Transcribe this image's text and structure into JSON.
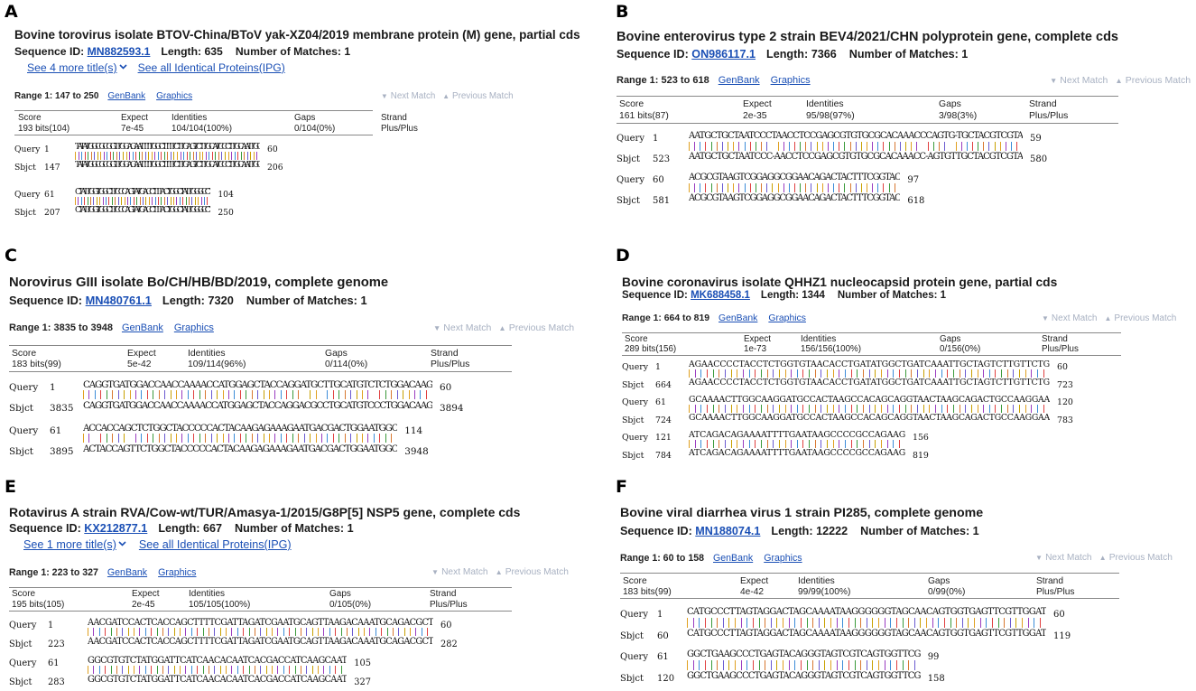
{
  "panels": [
    {
      "letter": "A",
      "title": "Bovine torovirus isolate BTOV-China/BToV yak-XZ04/2019 membrane protein (M) gene, partial cds",
      "seq_id_label": "Sequence ID:",
      "seq_id": "MN882593.1",
      "length_label": "Length:",
      "length": "635",
      "matches_label": "Number of Matches:",
      "matches": "1",
      "more_titles": "See 4 more title(s)",
      "identical_proteins": "See all Identical Proteins(IPG)",
      "range": "Range 1: 147 to 250",
      "genbank": "GenBank",
      "graphics": "Graphics",
      "next_match": "Next Match",
      "previous_match": "Previous Match",
      "score_headers": [
        "Score",
        "Expect",
        "Identities",
        "Gaps",
        "Strand"
      ],
      "score_values": [
        "193 bits(104)",
        "7e-45",
        "104/104(100%)",
        "0/104(0%)",
        "Plus/Plus"
      ],
      "alignment": [
        {
          "label": "Query",
          "start": "1",
          "seq": "TATATGGCGCGGTTGGAGAATTTTGGCTTTTCTTGAGTCTTGCATCCCTTGCAATTGC",
          "end": "60"
        },
        {
          "label": "Sbjct",
          "start": "147",
          "seq": "TATATGGCGCGGTTGGAGAATTTTGGCTTTTCTTGAGTCTTGCATCCCTTGCAATTGC",
          "end": "206"
        },
        {
          "label": "Query",
          "start": "61",
          "seq": "CTATTGGTGGCTTCCCAGTATGACCTTTACTGGCTATTGGGCCT",
          "end": "104"
        },
        {
          "label": "Sbjct",
          "start": "207",
          "seq": "CTATTGGTGGCTTCCCAGTATGACCTTTACTGGCTATTGGGCCT",
          "end": "250"
        }
      ]
    },
    {
      "letter": "B",
      "title": "Bovine enterovirus type 2 strain BEV4/2021/CHN polyprotein gene, complete cds",
      "seq_id_label": "Sequence ID:",
      "seq_id": "ON986117.1",
      "length_label": "Length:",
      "length": "7366",
      "matches_label": "Number of Matches:",
      "matches": "1",
      "range": "Range 1: 523 to 618",
      "genbank": "GenBank",
      "graphics": "Graphics",
      "next_match": "Next Match",
      "previous_match": "Previous Match",
      "score_headers": [
        "Score",
        "Expect",
        "Identities",
        "Gaps",
        "Strand"
      ],
      "score_values": [
        "161 bits(87)",
        "2e-35",
        "95/98(97%)",
        "3/98(3%)",
        "Plus/Plus"
      ],
      "alignment": [
        {
          "label": "Query",
          "start": "1",
          "seq": "AATGCTGCTAATCCCTAACCTCCGAGCGTGTGCGCACAAACCCAGTG-TGCTACGTCGTA",
          "end": "59"
        },
        {
          "label": "Sbjct",
          "start": "523",
          "seq": "AATGCTGCTAATCCC-AACCTCCGAGCGTGTGCGCACAAACC-AGTGTTGCTACGTCGTA",
          "end": "580"
        },
        {
          "label": "Query",
          "start": "60",
          "seq": "ACGCGTAAGTCGGAGGCGGAACAGACTACTTTCGGTAC",
          "end": "97"
        },
        {
          "label": "Sbjct",
          "start": "581",
          "seq": "ACGCGTAAGTCGGAGGCGGAACAGACTACTTTCGGTAC",
          "end": "618"
        }
      ]
    },
    {
      "letter": "C",
      "title": "Norovirus GIII isolate Bo/CH/HB/BD/2019, complete genome",
      "seq_id_label": "Sequence ID:",
      "seq_id": "MN480761.1",
      "length_label": "Length:",
      "length": "7320",
      "matches_label": "Number of Matches:",
      "matches": "1",
      "range": "Range 1: 3835 to 3948",
      "genbank": "GenBank",
      "graphics": "Graphics",
      "next_match": "Next Match",
      "previous_match": "Previous Match",
      "score_headers": [
        "Score",
        "Expect",
        "Identities",
        "Gaps",
        "Strand"
      ],
      "score_values": [
        "183 bits(99)",
        "5e-42",
        "109/114(96%)",
        "0/114(0%)",
        "Plus/Plus"
      ],
      "alignment": [
        {
          "label": "Query",
          "start": "1",
          "seq": "CAGGTGATGGACCAACCAAAACCATGGAGCTACCAGGATGCTTGCATGTCTCTGGACAAG",
          "end": "60"
        },
        {
          "label": "Sbjct",
          "start": "3835",
          "seq": "CAGGTGATGGACCAACCAAAACCATGGAGCTACCAGGACGCCTGCATGTCCCTGGACAAG",
          "end": "3894"
        },
        {
          "label": "Query",
          "start": "61",
          "seq": "ACCACCAGCTCTGGCTACCCCCACTACAAGAGAAAGAATGACGACTGGAATGGC",
          "end": "114"
        },
        {
          "label": "Sbjct",
          "start": "3895",
          "seq": "ACTACCAGTTCTGGCTACCCCCACTACAAGAGAAAGAATGACGACTGGAATGGC",
          "end": "3948"
        }
      ]
    },
    {
      "letter": "D",
      "title": "Bovine coronavirus isolate QHHZ1 nucleocapsid protein gene, partial cds",
      "seq_id_label": "Sequence ID:",
      "seq_id": "MK688458.1",
      "length_label": "Length:",
      "length": "1344",
      "matches_label": "Number of Matches:",
      "matches": "1",
      "range": "Range 1: 664 to 819",
      "genbank": "GenBank",
      "graphics": "Graphics",
      "next_match": "Next Match",
      "previous_match": "Previous Match",
      "score_headers": [
        "Score",
        "Expect",
        "Identities",
        "Gaps",
        "Strand"
      ],
      "score_values": [
        "289 bits(156)",
        "1e-73",
        "156/156(100%)",
        "0/156(0%)",
        "Plus/Plus"
      ],
      "alignment": [
        {
          "label": "Query",
          "start": "1",
          "seq": "AGAACCCCTACCTCTGGTGTAACACCTGATATGGCTGATCAAATTGCTAGTCTTGTTCTG",
          "end": "60"
        },
        {
          "label": "Sbjct",
          "start": "664",
          "seq": "AGAACCCCTACCTCTGGTGTAACACCTGATATGGCTGATCAAATTGCTAGTCTTGTTCTG",
          "end": "723"
        },
        {
          "label": "Query",
          "start": "61",
          "seq": "GCAAAACTTGGCAAGGATGCCACTAAGCCACAGCAGGTAACTAAGCAGACTGCCAAGGAA",
          "end": "120"
        },
        {
          "label": "Sbjct",
          "start": "724",
          "seq": "GCAAAACTTGGCAAGGATGCCACTAAGCCACAGCAGGTAACTAAGCAGACTGCCAAGGAA",
          "end": "783"
        },
        {
          "label": "Query",
          "start": "121",
          "seq": "ATCAGACAGAAAATTTTGAATAAGCCCCGCCAGAAG",
          "end": "156"
        },
        {
          "label": "Sbjct",
          "start": "784",
          "seq": "ATCAGACAGAAAATTTTGAATAAGCCCCGCCAGAAG",
          "end": "819"
        }
      ]
    },
    {
      "letter": "E",
      "title": "Rotavirus A strain RVA/Cow-wt/TUR/Amasya-1/2015/G8P[5] NSP5 gene, complete cds",
      "seq_id_label": "Sequence ID:",
      "seq_id": "KX212877.1",
      "length_label": "Length:",
      "length": "667",
      "matches_label": "Number of Matches:",
      "matches": "1",
      "more_titles": "See 1 more title(s)",
      "identical_proteins": "See all Identical Proteins(IPG)",
      "range": "Range 1: 223 to 327",
      "genbank": "GenBank",
      "graphics": "Graphics",
      "next_match": "Next Match",
      "previous_match": "Previous Match",
      "score_headers": [
        "Score",
        "Expect",
        "Identities",
        "Gaps",
        "Strand"
      ],
      "score_values": [
        "195 bits(105)",
        "2e-45",
        "105/105(100%)",
        "0/105(0%)",
        "Plus/Plus"
      ],
      "alignment": [
        {
          "label": "Query",
          "start": "1",
          "seq": "AACGATCCACTCACCAGCTTTTCGATTAGATCGAATGCAGTTAAGACAAATGCAGACGCT",
          "end": "60"
        },
        {
          "label": "Sbjct",
          "start": "223",
          "seq": "AACGATCCACTCACCAGCTTTTCGATTAGATCGAATGCAGTTAAGACAAATGCAGACGCT",
          "end": "282"
        },
        {
          "label": "Query",
          "start": "61",
          "seq": "GGCGTGTCTATGGATTCATCAACACAATCACGACCATCAAGCAAT",
          "end": "105"
        },
        {
          "label": "Sbjct",
          "start": "283",
          "seq": "GGCGTGTCTATGGATTCATCAACACAATCACGACCATCAAGCAAT",
          "end": "327"
        }
      ]
    },
    {
      "letter": "F",
      "title": "Bovine viral diarrhea virus 1 strain PI285, complete genome",
      "seq_id_label": "Sequence ID:",
      "seq_id": "MN188074.1",
      "length_label": "Length:",
      "length": "12222",
      "matches_label": "Number of Matches:",
      "matches": "1",
      "range": "Range 1: 60 to 158",
      "genbank": "GenBank",
      "graphics": "Graphics",
      "next_match": "Next Match",
      "previous_match": "Previous Match",
      "score_headers": [
        "Score",
        "Expect",
        "Identities",
        "Gaps",
        "Strand"
      ],
      "score_values": [
        "183 bits(99)",
        "4e-42",
        "99/99(100%)",
        "0/99(0%)",
        "Plus/Plus"
      ],
      "alignment": [
        {
          "label": "Query",
          "start": "1",
          "seq": "CATGCCCTTAGTAGGACTAGCAAAATAAGGGGGGTAGCAACAGTGGTGAGTTCGTTGGAT",
          "end": "60"
        },
        {
          "label": "Sbjct",
          "start": "60",
          "seq": "CATGCCCTTAGTAGGACTAGCAAAATAAGGGGGGTAGCAACAGTGGTGAGTTCGTTGGAT",
          "end": "119"
        },
        {
          "label": "Query",
          "start": "61",
          "seq": "GGCTGAAGCCCTGAGTACAGGGTAGTCGTCAGTGGTTCG",
          "end": "99"
        },
        {
          "label": "Sbjct",
          "start": "120",
          "seq": "GGCTGAAGCCCTGAGTACAGGGTAGTCGTCAGTGGTTCG",
          "end": "158"
        }
      ]
    }
  ]
}
